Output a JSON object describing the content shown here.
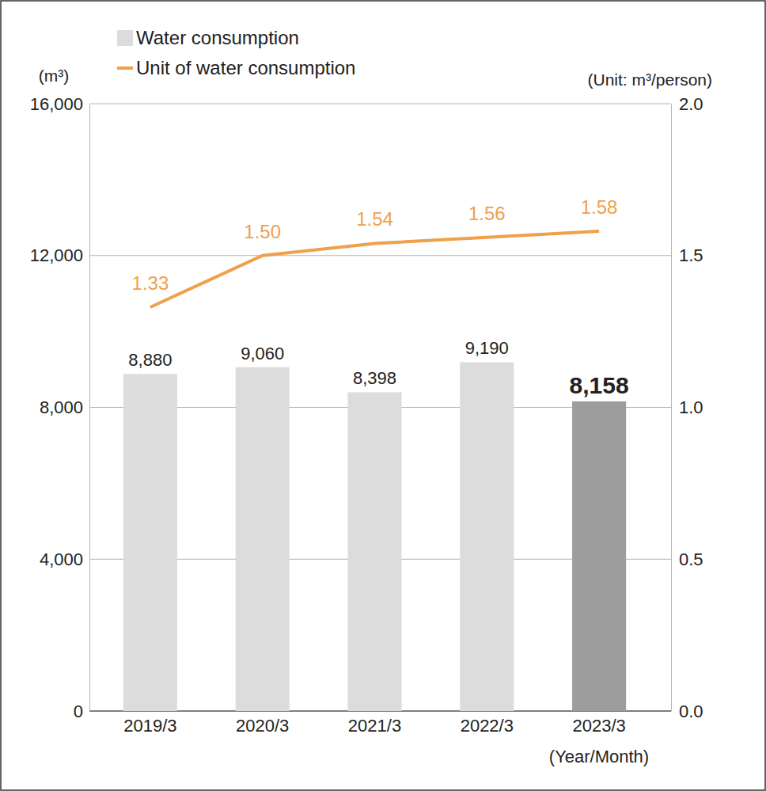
{
  "chart_data": {
    "type": "bar",
    "categories": [
      "2019/3",
      "2020/3",
      "2021/3",
      "2022/3",
      "2023/3"
    ],
    "x_label": "(Year/Month)",
    "y_label": "(m³)",
    "y2_label": "(Unit: m³/person)",
    "series": [
      {
        "name": "Water consumption",
        "type": "bar",
        "color": "#dcdcdc",
        "colors": [
          "#dcdcdc",
          "#dcdcdc",
          "#dcdcdc",
          "#dcdcdc",
          "#9d9d9e"
        ],
        "values": [
          8880,
          9060,
          8398,
          9190,
          8158
        ],
        "value_labels": [
          "8,880",
          "9,060",
          "8,398",
          "9,190",
          "8,158"
        ]
      },
      {
        "name": "Unit of water consumption",
        "type": "line",
        "axis": "y2",
        "color": "#f0a04b",
        "values": [
          1.33,
          1.5,
          1.54,
          1.56,
          1.58
        ],
        "value_labels": [
          "1.33",
          "1.50",
          "1.54",
          "1.56",
          "1.58"
        ]
      }
    ],
    "ylim": [
      0,
      16000
    ],
    "yticks": [
      0,
      {
        "value": 4000,
        "label": "4,000"
      },
      {
        "value": 8000,
        "label": "8,000"
      },
      {
        "value": 12000,
        "label": "12,000"
      },
      {
        "value": 16000,
        "label": "16,000"
      }
    ],
    "y2lim": [
      0,
      2.0
    ],
    "y2ticks": [
      {
        "value": 0,
        "label": "0.0"
      },
      {
        "value": 0.5,
        "label": "0.5"
      },
      {
        "value": 1.0,
        "label": "1.0"
      },
      {
        "value": 1.5,
        "label": "1.5"
      },
      {
        "value": 2.0,
        "label": "2.0"
      }
    ],
    "grid": true,
    "data_labels": true,
    "legend": "top-left"
  }
}
